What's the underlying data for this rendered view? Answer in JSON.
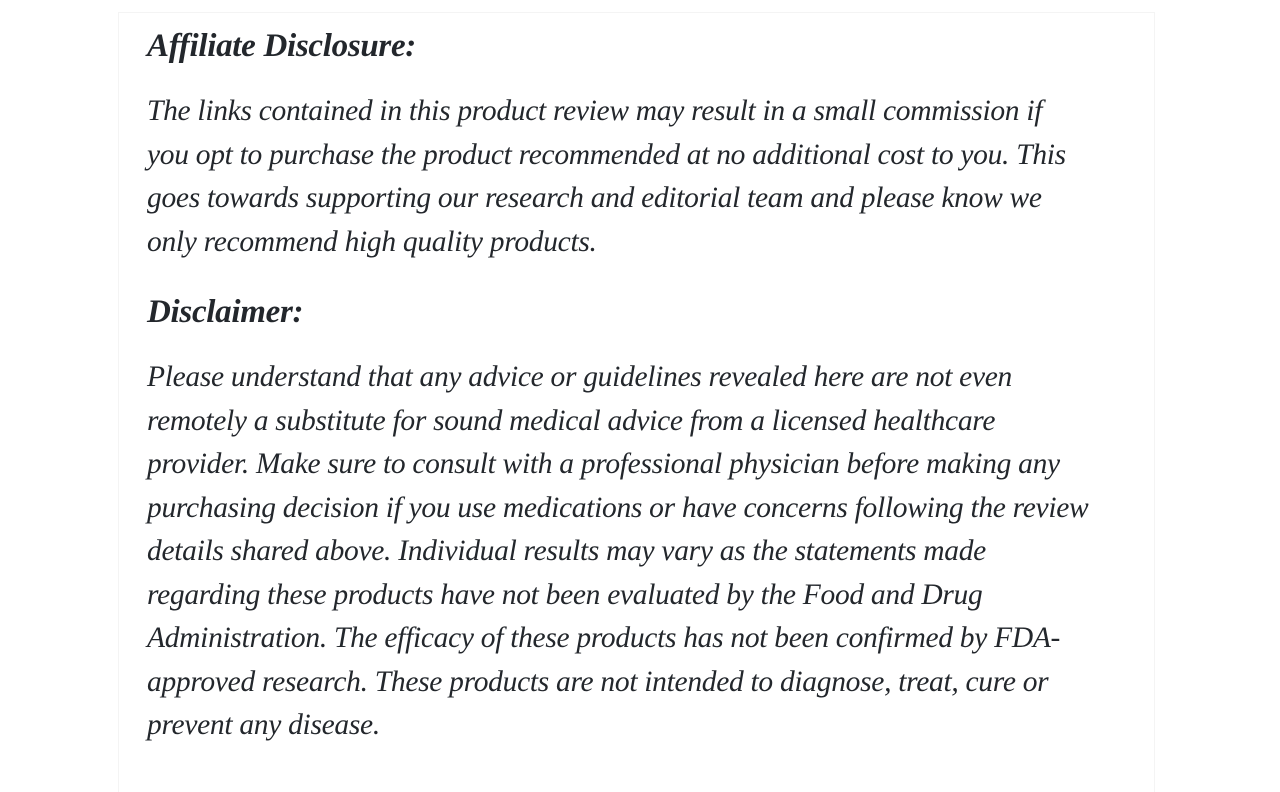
{
  "page": {
    "background": "#ffffff",
    "card_background": "#ffffff",
    "card_border_color": "#f4f4f4",
    "text_color": "#23272c"
  },
  "article": {
    "sections": [
      {
        "heading": "Affiliate Disclosure:",
        "paragraph_lines": [
          "The links contained in this product review may result in a small commission if",
          "you opt to purchase the product recommended at no additional cost to you. This",
          "goes towards supporting our research and editorial team and please know we",
          "only recommend high quality products."
        ]
      },
      {
        "heading": "Disclaimer:",
        "paragraph_lines": [
          "Please understand that any advice or guidelines revealed here are not even",
          "remotely a substitute for sound medical advice from a licensed healthcare",
          "provider. Make sure to consult with a professional physician before making any",
          "purchasing decision if you use medications or have concerns following the review",
          "details shared above. Individual results may vary as the statements made",
          "regarding these products have not been evaluated by the Food and Drug",
          "Administration. The efficacy of these products has not been confirmed by FDA-",
          "approved research. These products are not intended to diagnose, treat, cure or",
          "prevent any disease."
        ]
      }
    ]
  }
}
